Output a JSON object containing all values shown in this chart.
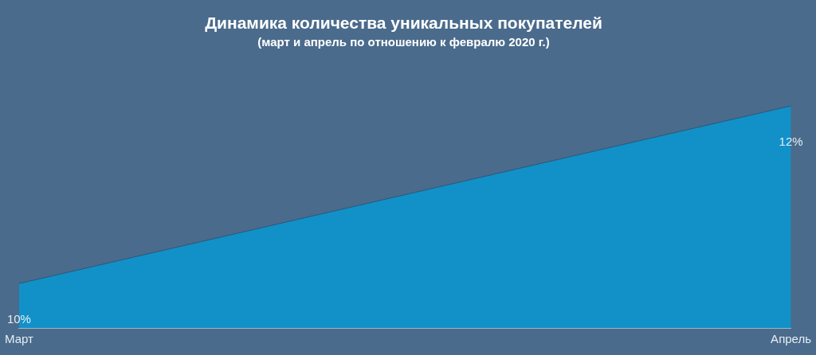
{
  "chart_data": {
    "type": "area",
    "title": "Динамика количества уникальных покупателей",
    "subtitle": "(март и апрель по отношению к февралю 2020 г.)",
    "categories": [
      "Март",
      "Апрель"
    ],
    "series": [
      {
        "color": "#1191c8",
        "values": [
          10,
          12
        ],
        "value_labels": [
          "10%",
          "12%"
        ]
      }
    ],
    "tick_labels": "x",
    "legend": false
  }
}
